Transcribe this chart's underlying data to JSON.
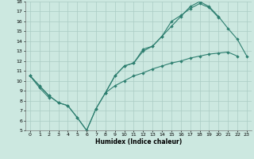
{
  "xlabel": "Humidex (Indice chaleur)",
  "background_color": "#cce8e0",
  "grid_color": "#aaccc4",
  "line_color": "#2e7f70",
  "xlim": [
    -0.5,
    23.5
  ],
  "ylim": [
    5,
    18
  ],
  "xticks": [
    0,
    1,
    2,
    3,
    4,
    5,
    6,
    7,
    8,
    9,
    10,
    11,
    12,
    13,
    14,
    15,
    16,
    17,
    18,
    19,
    20,
    21,
    22,
    23
  ],
  "yticks": [
    5,
    6,
    7,
    8,
    9,
    10,
    11,
    12,
    13,
    14,
    15,
    16,
    17,
    18
  ],
  "line1_x": [
    0,
    1,
    2,
    3,
    4,
    5,
    6,
    7,
    8,
    9,
    10,
    11,
    12,
    13,
    14,
    15,
    16,
    17,
    18,
    19,
    20,
    21,
    22,
    23
  ],
  "line1_y": [
    10.5,
    9.5,
    8.5,
    7.8,
    7.5,
    6.3,
    5.0,
    7.2,
    8.8,
    10.5,
    11.5,
    11.8,
    13.2,
    13.5,
    14.5,
    15.5,
    16.5,
    17.5,
    18.0,
    17.5,
    16.5,
    15.3,
    14.2,
    12.5
  ],
  "line2_x": [
    0,
    1,
    2,
    3,
    4,
    5,
    6,
    7,
    8,
    9,
    10,
    11,
    12,
    13,
    14,
    15,
    16,
    17,
    18,
    19,
    20,
    21,
    22,
    23
  ],
  "line2_y": [
    10.5,
    9.5,
    8.5,
    7.8,
    7.5,
    6.3,
    5.0,
    7.2,
    8.8,
    10.5,
    11.5,
    11.8,
    13.0,
    13.5,
    14.5,
    16.0,
    16.6,
    17.3,
    17.8,
    17.4,
    16.4,
    null,
    null,
    null
  ],
  "line3_x": [
    0,
    1,
    2,
    3,
    4,
    5,
    6,
    7,
    8,
    9,
    10,
    11,
    12,
    13,
    14,
    15,
    16,
    17,
    18,
    19,
    20,
    21,
    22,
    23
  ],
  "line3_y": [
    10.5,
    9.3,
    8.3,
    null,
    null,
    null,
    null,
    null,
    8.8,
    9.5,
    10.0,
    10.5,
    10.8,
    11.2,
    11.5,
    11.8,
    12.0,
    12.3,
    12.5,
    12.7,
    12.8,
    12.9,
    12.5,
    null
  ]
}
